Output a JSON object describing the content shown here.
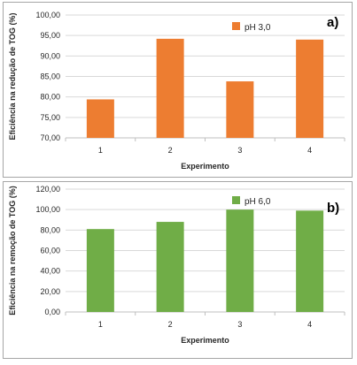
{
  "chart_data": [
    {
      "type": "bar",
      "panel_label": "a)",
      "categories": [
        "1",
        "2",
        "3",
        "4"
      ],
      "series": [
        {
          "name": "pH 3,0",
          "values": [
            79.4,
            94.2,
            83.8,
            94.0
          ],
          "color": "#ed7d31"
        }
      ],
      "xlabel": "Experimento",
      "ylabel": "Eficiência na redução de TOG (%)",
      "ylim": [
        70,
        100
      ],
      "yticks": [
        "70,00",
        "75,00",
        "80,00",
        "85,00",
        "90,00",
        "95,00",
        "100,00"
      ],
      "grid": true,
      "legend_position": "top-right"
    },
    {
      "type": "bar",
      "panel_label": "b)",
      "categories": [
        "1",
        "2",
        "3",
        "4"
      ],
      "series": [
        {
          "name": "pH 6,0",
          "values": [
            81.0,
            88.0,
            100.0,
            99.0
          ],
          "color": "#70ad47"
        }
      ],
      "xlabel": "Experimento",
      "ylabel": "Eficiência na remoção de TOG (%)",
      "ylim": [
        0,
        120
      ],
      "yticks": [
        "0,00",
        "20,00",
        "40,00",
        "60,00",
        "80,00",
        "100,00",
        "120,00"
      ],
      "grid": true,
      "legend_position": "top-right"
    }
  ]
}
